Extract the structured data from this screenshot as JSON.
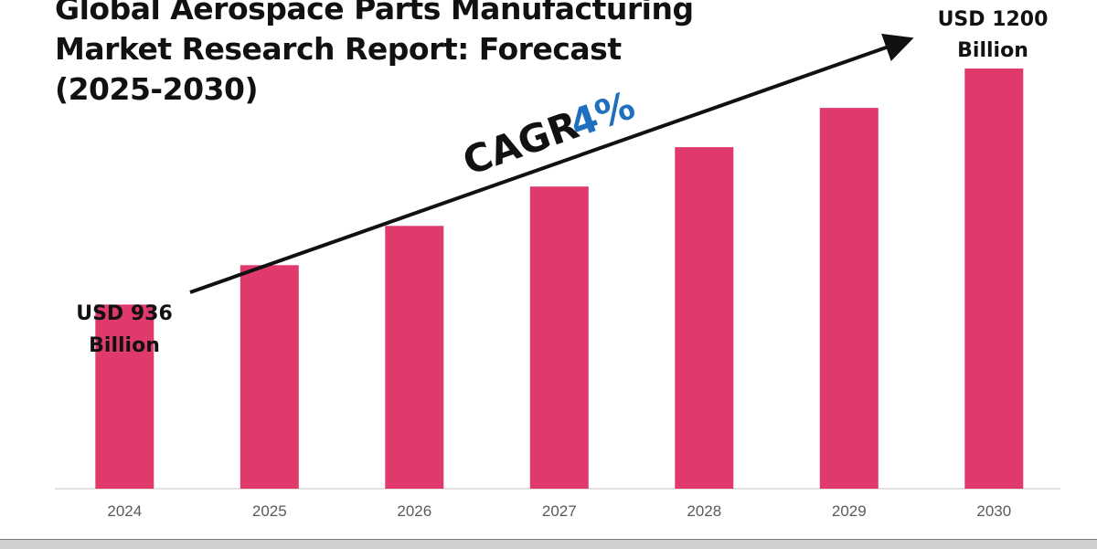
{
  "chart_data": {
    "type": "bar",
    "title_lines": [
      "Global Aerospace Parts Manufacturing",
      "Market Research Report: Forecast",
      "(2025-2030)"
    ],
    "categories": [
      "2024",
      "2025",
      "2026",
      "2027",
      "2028",
      "2029",
      "2030"
    ],
    "values": [
      936,
      980,
      1024,
      1068,
      1112,
      1156,
      1200
    ],
    "ylim": [
      730,
      1200
    ],
    "bar_color": "#e03a6d",
    "cagr_label": "CAGR",
    "cagr_value": "4%",
    "cagr_value_color": "#1f6fbf",
    "start_callout": [
      "USD 936",
      "Billion"
    ],
    "end_callout": [
      "USD 1200",
      "Billion"
    ],
    "grid": false,
    "legend": "none"
  }
}
